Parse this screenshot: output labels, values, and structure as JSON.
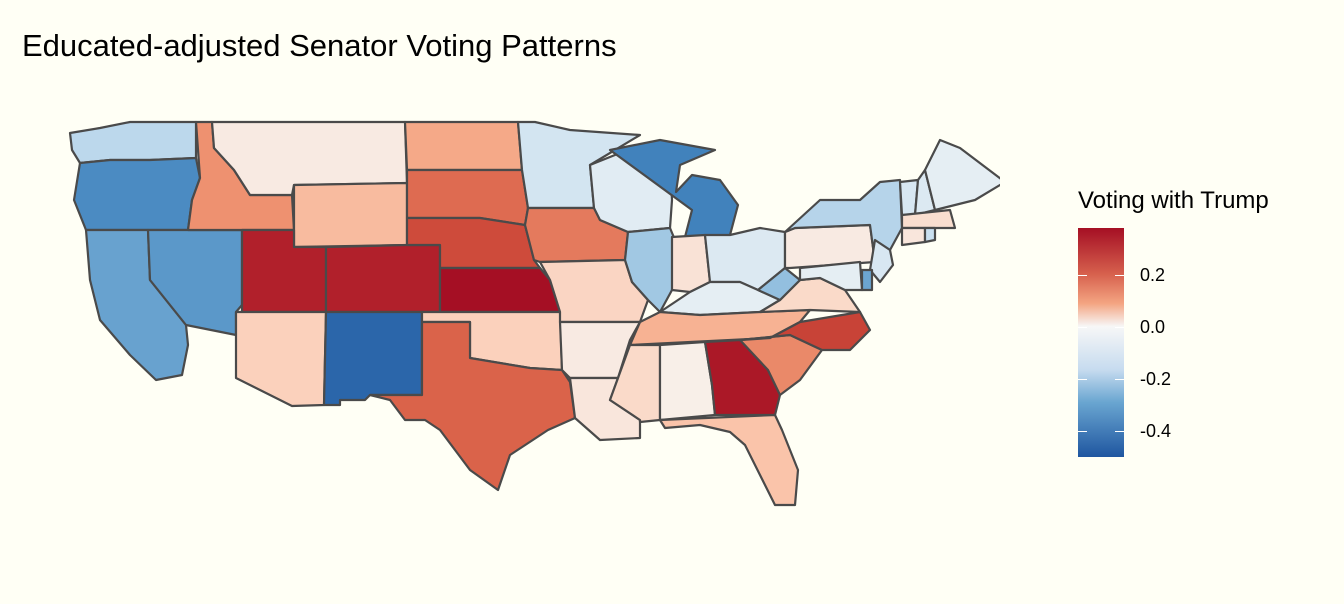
{
  "title": "Educated-adjusted Senator Voting Patterns",
  "legend": {
    "title": "Voting with Trump",
    "ticks": [
      {
        "value": 0.2,
        "label": "0.2"
      },
      {
        "value": 0.0,
        "label": "0.0"
      },
      {
        "value": -0.2,
        "label": "-0.2"
      },
      {
        "value": -0.4,
        "label": "-0.4"
      }
    ],
    "range": [
      -0.5,
      0.38
    ],
    "scale": "diverging red-white-blue"
  },
  "colors": {
    "background": "#fffff5",
    "border": "#4a4a4a",
    "high": "#a50f24",
    "mid": "#f7f7f7",
    "low": "#1f56a0"
  },
  "states": [
    {
      "name": "WA",
      "value": -0.12
    },
    {
      "name": "OR",
      "value": -0.33
    },
    {
      "name": "CA",
      "value": -0.26
    },
    {
      "name": "NV",
      "value": -0.29
    },
    {
      "name": "ID",
      "value": 0.22
    },
    {
      "name": "MT",
      "value": 0.03
    },
    {
      "name": "WY",
      "value": 0.14
    },
    {
      "name": "UT",
      "value": 0.36
    },
    {
      "name": "AZ",
      "value": 0.09
    },
    {
      "name": "CO",
      "value": 0.36
    },
    {
      "name": "NM",
      "value": -0.45
    },
    {
      "name": "ND",
      "value": 0.18
    },
    {
      "name": "SD",
      "value": 0.27
    },
    {
      "name": "NE",
      "value": 0.31
    },
    {
      "name": "KS",
      "value": 0.38
    },
    {
      "name": "OK",
      "value": 0.09
    },
    {
      "name": "TX",
      "value": 0.28
    },
    {
      "name": "MN",
      "value": -0.08
    },
    {
      "name": "IA",
      "value": 0.25
    },
    {
      "name": "MO",
      "value": 0.08
    },
    {
      "name": "AR",
      "value": 0.03
    },
    {
      "name": "LA",
      "value": 0.04
    },
    {
      "name": "WI",
      "value": -0.05
    },
    {
      "name": "IL",
      "value": -0.16
    },
    {
      "name": "MI",
      "value": -0.36
    },
    {
      "name": "IN",
      "value": 0.05
    },
    {
      "name": "OH",
      "value": -0.06
    },
    {
      "name": "KY",
      "value": -0.04
    },
    {
      "name": "TN",
      "value": 0.16
    },
    {
      "name": "MS",
      "value": 0.07
    },
    {
      "name": "AL",
      "value": 0.02
    },
    {
      "name": "GA",
      "value": 0.37
    },
    {
      "name": "FL",
      "value": 0.12
    },
    {
      "name": "SC",
      "value": 0.23
    },
    {
      "name": "NC",
      "value": 0.32
    },
    {
      "name": "VA",
      "value": 0.07
    },
    {
      "name": "WV",
      "value": -0.18
    },
    {
      "name": "PA",
      "value": 0.03
    },
    {
      "name": "NY",
      "value": -0.13
    },
    {
      "name": "VT",
      "value": -0.07
    },
    {
      "name": "NH",
      "value": -0.06
    },
    {
      "name": "ME",
      "value": -0.04
    },
    {
      "name": "MA",
      "value": 0.06
    },
    {
      "name": "CT",
      "value": 0.04
    },
    {
      "name": "RI",
      "value": -0.1
    },
    {
      "name": "NJ",
      "value": -0.07
    },
    {
      "name": "DE",
      "value": -0.25
    },
    {
      "name": "MD",
      "value": -0.04
    }
  ]
}
